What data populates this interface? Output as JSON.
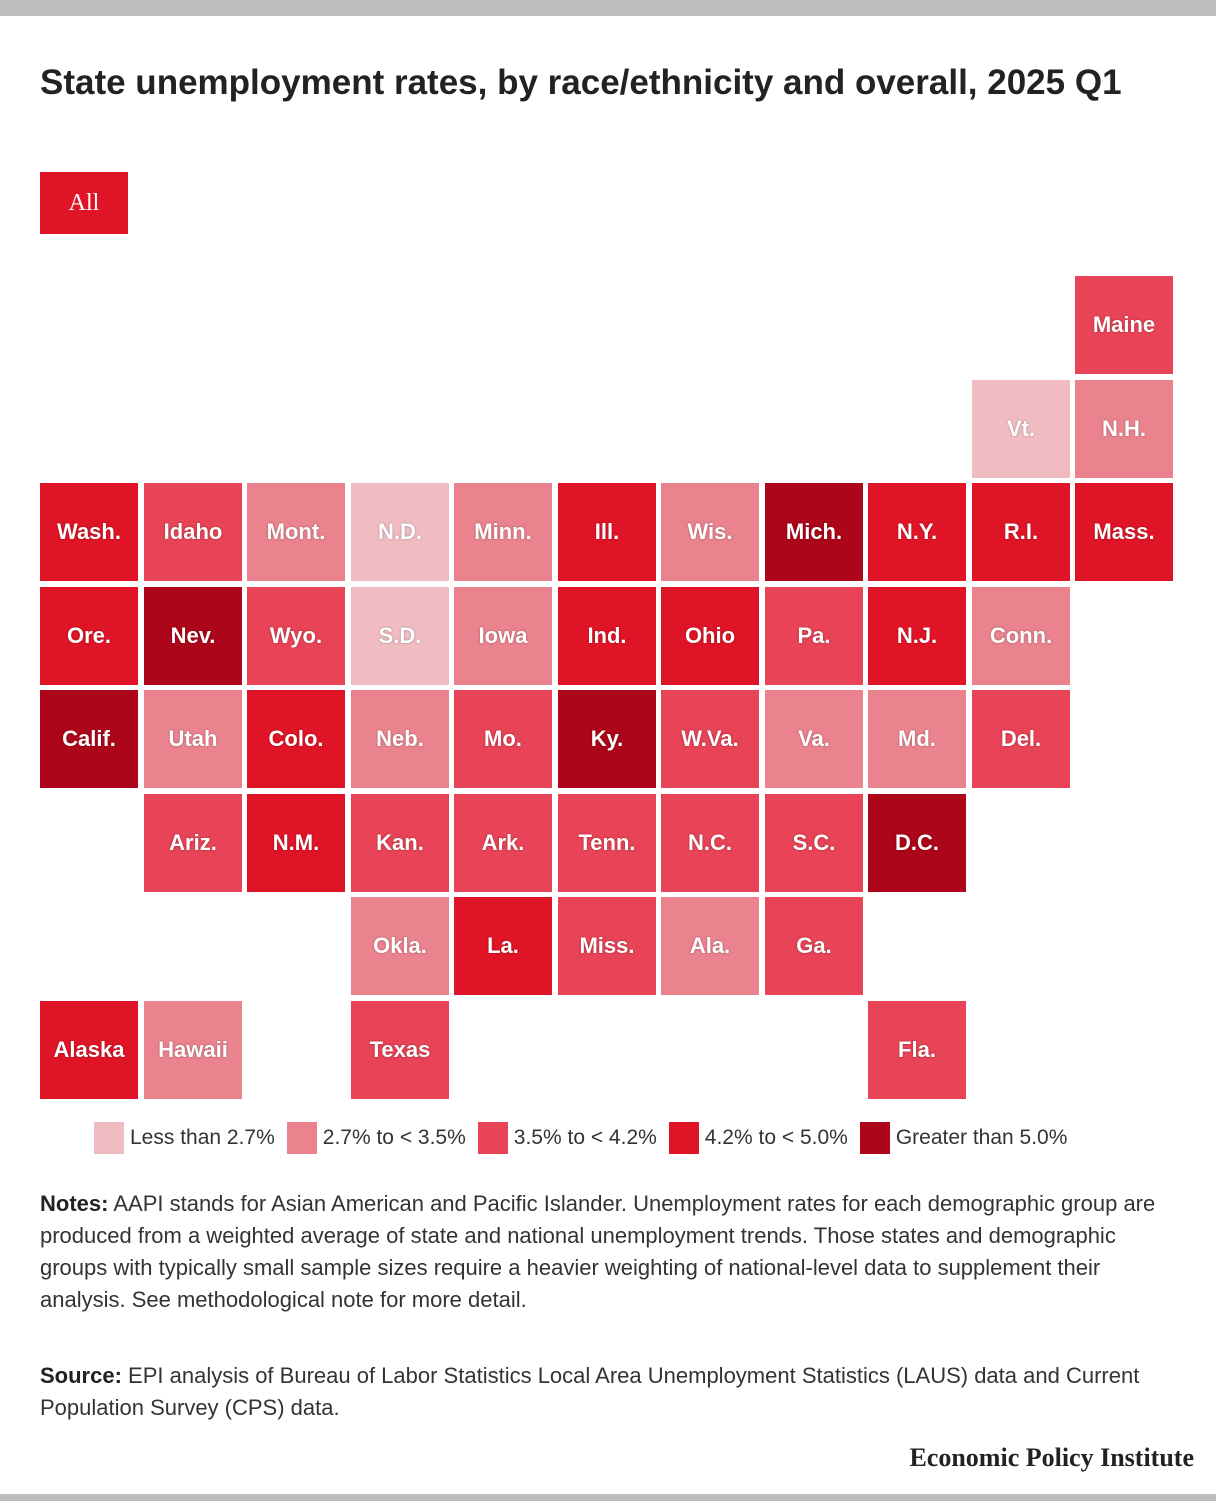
{
  "title": "State unemployment rates, by race/ethnicity and overall, 2025 Q1",
  "filter": {
    "selected_label": "All"
  },
  "colors": {
    "lt2_7": "#f0bcc2",
    "2_7to3_5": "#ea838e",
    "3_5to4_2": "#e84356",
    "4_2to5_0": "#e01427",
    "gt5_0": "#ad0519"
  },
  "legend": [
    {
      "key": "lt2_7",
      "label": "Less than 2.7%"
    },
    {
      "key": "2_7to3_5",
      "label": "2.7% to < 3.5%"
    },
    {
      "key": "3_5to4_2",
      "label": "3.5% to < 4.2%"
    },
    {
      "key": "4_2to5_0",
      "label": "4.2% to < 5.0%"
    },
    {
      "key": "gt5_0",
      "label": "Greater than 5.0%"
    }
  ],
  "states": [
    {
      "label": "Maine",
      "category": "3_5to4_2",
      "col": 10,
      "row": 0
    },
    {
      "label": "Vt.",
      "category": "lt2_7",
      "col": 9,
      "row": 1
    },
    {
      "label": "N.H.",
      "category": "2_7to3_5",
      "col": 10,
      "row": 1
    },
    {
      "label": "Wash.",
      "category": "4_2to5_0",
      "col": 0,
      "row": 2
    },
    {
      "label": "Idaho",
      "category": "3_5to4_2",
      "col": 1,
      "row": 2
    },
    {
      "label": "Mont.",
      "category": "2_7to3_5",
      "col": 2,
      "row": 2
    },
    {
      "label": "N.D.",
      "category": "lt2_7",
      "col": 3,
      "row": 2
    },
    {
      "label": "Minn.",
      "category": "2_7to3_5",
      "col": 4,
      "row": 2
    },
    {
      "label": "Ill.",
      "category": "4_2to5_0",
      "col": 5,
      "row": 2
    },
    {
      "label": "Wis.",
      "category": "2_7to3_5",
      "col": 6,
      "row": 2
    },
    {
      "label": "Mich.",
      "category": "gt5_0",
      "col": 7,
      "row": 2
    },
    {
      "label": "N.Y.",
      "category": "4_2to5_0",
      "col": 8,
      "row": 2
    },
    {
      "label": "R.I.",
      "category": "4_2to5_0",
      "col": 9,
      "row": 2
    },
    {
      "label": "Mass.",
      "category": "4_2to5_0",
      "col": 10,
      "row": 2
    },
    {
      "label": "Ore.",
      "category": "4_2to5_0",
      "col": 0,
      "row": 3
    },
    {
      "label": "Nev.",
      "category": "gt5_0",
      "col": 1,
      "row": 3
    },
    {
      "label": "Wyo.",
      "category": "3_5to4_2",
      "col": 2,
      "row": 3
    },
    {
      "label": "S.D.",
      "category": "lt2_7",
      "col": 3,
      "row": 3
    },
    {
      "label": "Iowa",
      "category": "2_7to3_5",
      "col": 4,
      "row": 3
    },
    {
      "label": "Ind.",
      "category": "4_2to5_0",
      "col": 5,
      "row": 3
    },
    {
      "label": "Ohio",
      "category": "4_2to5_0",
      "col": 6,
      "row": 3
    },
    {
      "label": "Pa.",
      "category": "3_5to4_2",
      "col": 7,
      "row": 3
    },
    {
      "label": "N.J.",
      "category": "4_2to5_0",
      "col": 8,
      "row": 3
    },
    {
      "label": "Conn.",
      "category": "2_7to3_5",
      "col": 9,
      "row": 3
    },
    {
      "label": "Calif.",
      "category": "gt5_0",
      "col": 0,
      "row": 4
    },
    {
      "label": "Utah",
      "category": "2_7to3_5",
      "col": 1,
      "row": 4
    },
    {
      "label": "Colo.",
      "category": "4_2to5_0",
      "col": 2,
      "row": 4
    },
    {
      "label": "Neb.",
      "category": "2_7to3_5",
      "col": 3,
      "row": 4
    },
    {
      "label": "Mo.",
      "category": "3_5to4_2",
      "col": 4,
      "row": 4
    },
    {
      "label": "Ky.",
      "category": "gt5_0",
      "col": 5,
      "row": 4
    },
    {
      "label": "W.Va.",
      "category": "3_5to4_2",
      "col": 6,
      "row": 4
    },
    {
      "label": "Va.",
      "category": "2_7to3_5",
      "col": 7,
      "row": 4
    },
    {
      "label": "Md.",
      "category": "2_7to3_5",
      "col": 8,
      "row": 4
    },
    {
      "label": "Del.",
      "category": "3_5to4_2",
      "col": 9,
      "row": 4
    },
    {
      "label": "Ariz.",
      "category": "3_5to4_2",
      "col": 1,
      "row": 5
    },
    {
      "label": "N.M.",
      "category": "4_2to5_0",
      "col": 2,
      "row": 5
    },
    {
      "label": "Kan.",
      "category": "3_5to4_2",
      "col": 3,
      "row": 5
    },
    {
      "label": "Ark.",
      "category": "3_5to4_2",
      "col": 4,
      "row": 5
    },
    {
      "label": "Tenn.",
      "category": "3_5to4_2",
      "col": 5,
      "row": 5
    },
    {
      "label": "N.C.",
      "category": "3_5to4_2",
      "col": 6,
      "row": 5
    },
    {
      "label": "S.C.",
      "category": "3_5to4_2",
      "col": 7,
      "row": 5
    },
    {
      "label": "D.C.",
      "category": "gt5_0",
      "col": 8,
      "row": 5
    },
    {
      "label": "Okla.",
      "category": "2_7to3_5",
      "col": 3,
      "row": 6
    },
    {
      "label": "La.",
      "category": "4_2to5_0",
      "col": 4,
      "row": 6
    },
    {
      "label": "Miss.",
      "category": "3_5to4_2",
      "col": 5,
      "row": 6
    },
    {
      "label": "Ala.",
      "category": "2_7to3_5",
      "col": 6,
      "row": 6
    },
    {
      "label": "Ga.",
      "category": "3_5to4_2",
      "col": 7,
      "row": 6
    },
    {
      "label": "Alaska",
      "category": "4_2to5_0",
      "col": 0,
      "row": 7
    },
    {
      "label": "Hawaii",
      "category": "2_7to3_5",
      "col": 1,
      "row": 7
    },
    {
      "label": "Texas",
      "category": "3_5to4_2",
      "col": 3,
      "row": 7
    },
    {
      "label": "Fla.",
      "category": "3_5to4_2",
      "col": 8,
      "row": 7
    }
  ],
  "notes": {
    "lead": "Notes:",
    "text": " AAPI stands for Asian American and Pacific Islander. Unemployment rates for each demographic group are produced from a weighted average of state and national unemployment trends. Those states and demographic groups with typically small sample sizes require a heavier weighting of national-level data to supplement their analysis. See methodological note for more detail."
  },
  "source": {
    "lead": "Source:",
    "text": " EPI analysis of Bureau of Labor Statistics Local Area Unemployment Statistics (LAUS) data and Current Population Survey (CPS) data."
  },
  "brand": "Economic Policy Institute"
}
